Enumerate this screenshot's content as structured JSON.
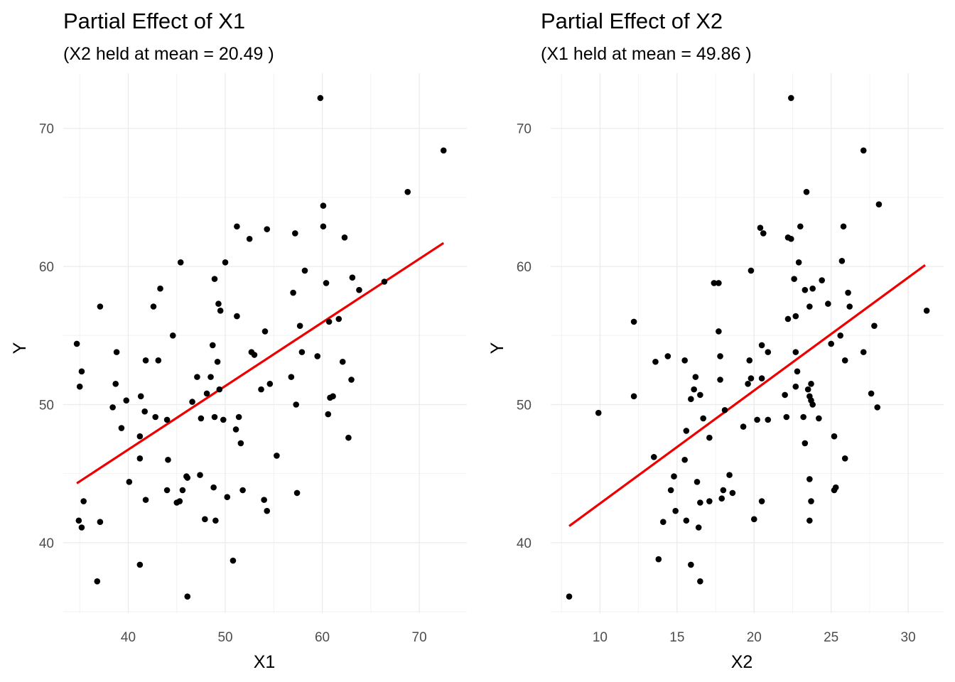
{
  "chart_data": [
    {
      "type": "scatter",
      "title": "Partial Effect of X1",
      "subtitle": "(X2 held at mean = 20.49 )",
      "xlabel": "X1",
      "ylabel": "Y",
      "xlim": [
        33.3,
        74.9
      ],
      "ylim": [
        34.9,
        74.0
      ],
      "x_ticks": [
        "40",
        "50",
        "60",
        "70"
      ],
      "y_ticks": [
        "40",
        "50",
        "60",
        "70"
      ],
      "grid": true,
      "point_color": "#000000",
      "fit_color": "#ee0000",
      "fit_line": {
        "x": [
          34.7,
          72.5
        ],
        "y": [
          44.3,
          61.7
        ]
      },
      "points": [
        {
          "x": 34.7,
          "y": 54.4
        },
        {
          "x": 34.9,
          "y": 41.6
        },
        {
          "x": 35.0,
          "y": 51.3
        },
        {
          "x": 35.2,
          "y": 52.4
        },
        {
          "x": 35.2,
          "y": 41.1
        },
        {
          "x": 35.4,
          "y": 43.0
        },
        {
          "x": 36.8,
          "y": 37.2
        },
        {
          "x": 37.1,
          "y": 57.1
        },
        {
          "x": 37.1,
          "y": 41.5
        },
        {
          "x": 38.4,
          "y": 49.8
        },
        {
          "x": 38.7,
          "y": 51.5
        },
        {
          "x": 38.8,
          "y": 53.8
        },
        {
          "x": 39.3,
          "y": 48.3
        },
        {
          "x": 39.8,
          "y": 50.3
        },
        {
          "x": 40.1,
          "y": 44.4
        },
        {
          "x": 41.2,
          "y": 47.7
        },
        {
          "x": 41.2,
          "y": 46.1
        },
        {
          "x": 41.2,
          "y": 38.4
        },
        {
          "x": 41.3,
          "y": 50.6
        },
        {
          "x": 41.7,
          "y": 49.5
        },
        {
          "x": 41.8,
          "y": 53.2
        },
        {
          "x": 41.8,
          "y": 43.1
        },
        {
          "x": 42.6,
          "y": 57.1
        },
        {
          "x": 42.8,
          "y": 49.1
        },
        {
          "x": 43.1,
          "y": 53.2
        },
        {
          "x": 43.3,
          "y": 58.4
        },
        {
          "x": 44.0,
          "y": 48.9
        },
        {
          "x": 44.0,
          "y": 43.8
        },
        {
          "x": 44.1,
          "y": 46.0
        },
        {
          "x": 44.6,
          "y": 55.0
        },
        {
          "x": 45.0,
          "y": 42.9
        },
        {
          "x": 45.3,
          "y": 43.0
        },
        {
          "x": 45.4,
          "y": 60.3
        },
        {
          "x": 45.6,
          "y": 43.8
        },
        {
          "x": 46.0,
          "y": 44.8
        },
        {
          "x": 46.1,
          "y": 44.7
        },
        {
          "x": 46.1,
          "y": 36.1
        },
        {
          "x": 46.6,
          "y": 50.2
        },
        {
          "x": 47.1,
          "y": 52.0
        },
        {
          "x": 47.4,
          "y": 44.9
        },
        {
          "x": 47.5,
          "y": 49.0
        },
        {
          "x": 47.9,
          "y": 41.7
        },
        {
          "x": 48.1,
          "y": 50.8
        },
        {
          "x": 48.5,
          "y": 52.0
        },
        {
          "x": 48.7,
          "y": 54.3
        },
        {
          "x": 48.8,
          "y": 44.0
        },
        {
          "x": 48.9,
          "y": 49.1
        },
        {
          "x": 48.9,
          "y": 59.1
        },
        {
          "x": 49.0,
          "y": 41.6
        },
        {
          "x": 49.2,
          "y": 53.1
        },
        {
          "x": 49.3,
          "y": 57.3
        },
        {
          "x": 49.4,
          "y": 51.1
        },
        {
          "x": 49.5,
          "y": 56.8
        },
        {
          "x": 49.8,
          "y": 48.9
        },
        {
          "x": 50.0,
          "y": 60.3
        },
        {
          "x": 50.2,
          "y": 43.3
        },
        {
          "x": 50.8,
          "y": 38.7
        },
        {
          "x": 51.1,
          "y": 48.2
        },
        {
          "x": 51.2,
          "y": 56.4
        },
        {
          "x": 51.2,
          "y": 62.9
        },
        {
          "x": 51.4,
          "y": 49.1
        },
        {
          "x": 51.6,
          "y": 47.2
        },
        {
          "x": 51.8,
          "y": 43.8
        },
        {
          "x": 52.5,
          "y": 62.0
        },
        {
          "x": 52.7,
          "y": 53.8
        },
        {
          "x": 53.0,
          "y": 53.6
        },
        {
          "x": 53.7,
          "y": 51.1
        },
        {
          "x": 54.0,
          "y": 43.1
        },
        {
          "x": 54.1,
          "y": 55.3
        },
        {
          "x": 54.3,
          "y": 62.7
        },
        {
          "x": 54.3,
          "y": 42.3
        },
        {
          "x": 54.6,
          "y": 51.5
        },
        {
          "x": 55.3,
          "y": 46.3
        },
        {
          "x": 56.8,
          "y": 52.0
        },
        {
          "x": 57.0,
          "y": 58.1
        },
        {
          "x": 57.2,
          "y": 62.4
        },
        {
          "x": 57.3,
          "y": 50.0
        },
        {
          "x": 57.4,
          "y": 43.6
        },
        {
          "x": 57.7,
          "y": 55.7
        },
        {
          "x": 57.9,
          "y": 53.8
        },
        {
          "x": 58.2,
          "y": 59.7
        },
        {
          "x": 59.5,
          "y": 53.5
        },
        {
          "x": 59.8,
          "y": 72.2
        },
        {
          "x": 60.1,
          "y": 62.9
        },
        {
          "x": 60.1,
          "y": 64.4
        },
        {
          "x": 60.4,
          "y": 58.8
        },
        {
          "x": 60.6,
          "y": 49.3
        },
        {
          "x": 60.7,
          "y": 56.0
        },
        {
          "x": 60.8,
          "y": 50.5
        },
        {
          "x": 61.1,
          "y": 50.6
        },
        {
          "x": 61.7,
          "y": 56.2
        },
        {
          "x": 62.1,
          "y": 53.1
        },
        {
          "x": 62.3,
          "y": 62.1
        },
        {
          "x": 62.7,
          "y": 47.6
        },
        {
          "x": 63.0,
          "y": 51.8
        },
        {
          "x": 63.1,
          "y": 59.2
        },
        {
          "x": 63.8,
          "y": 58.3
        },
        {
          "x": 66.4,
          "y": 58.9
        },
        {
          "x": 68.8,
          "y": 65.4
        },
        {
          "x": 72.5,
          "y": 68.4
        }
      ]
    },
    {
      "type": "scatter",
      "title": "Partial Effect of X2",
      "subtitle": "(X1 held at mean = 49.86 )",
      "xlabel": "X2",
      "ylabel": "Y",
      "xlim": [
        6.8,
        32.3
      ],
      "ylim": [
        34.9,
        74.0
      ],
      "x_ticks": [
        "10",
        "15",
        "20",
        "25",
        "30"
      ],
      "y_ticks": [
        "40",
        "50",
        "60",
        "70"
      ],
      "grid": true,
      "point_color": "#000000",
      "fit_color": "#ee0000",
      "fit_line": {
        "x": [
          8.0,
          31.1
        ],
        "y": [
          41.2,
          60.1
        ]
      },
      "points": [
        {
          "x": 8.0,
          "y": 36.1
        },
        {
          "x": 9.9,
          "y": 49.4
        },
        {
          "x": 12.2,
          "y": 56.0
        },
        {
          "x": 12.2,
          "y": 50.6
        },
        {
          "x": 13.5,
          "y": 46.2
        },
        {
          "x": 13.6,
          "y": 53.1
        },
        {
          "x": 13.8,
          "y": 38.8
        },
        {
          "x": 14.1,
          "y": 41.5
        },
        {
          "x": 14.4,
          "y": 53.5
        },
        {
          "x": 14.6,
          "y": 43.8
        },
        {
          "x": 14.8,
          "y": 44.8
        },
        {
          "x": 14.9,
          "y": 42.3
        },
        {
          "x": 15.5,
          "y": 53.2
        },
        {
          "x": 15.5,
          "y": 46.0
        },
        {
          "x": 15.6,
          "y": 48.1
        },
        {
          "x": 15.6,
          "y": 41.6
        },
        {
          "x": 15.9,
          "y": 50.4
        },
        {
          "x": 15.9,
          "y": 38.4
        },
        {
          "x": 16.1,
          "y": 51.1
        },
        {
          "x": 16.2,
          "y": 52.0
        },
        {
          "x": 16.3,
          "y": 44.4
        },
        {
          "x": 16.4,
          "y": 41.1
        },
        {
          "x": 16.5,
          "y": 50.7
        },
        {
          "x": 16.5,
          "y": 37.2
        },
        {
          "x": 16.5,
          "y": 42.9
        },
        {
          "x": 16.7,
          "y": 49.0
        },
        {
          "x": 17.1,
          "y": 47.6
        },
        {
          "x": 17.1,
          "y": 43.0
        },
        {
          "x": 17.4,
          "y": 58.8
        },
        {
          "x": 17.7,
          "y": 58.8
        },
        {
          "x": 17.7,
          "y": 55.3
        },
        {
          "x": 17.8,
          "y": 53.5
        },
        {
          "x": 17.8,
          "y": 51.8
        },
        {
          "x": 17.9,
          "y": 43.2
        },
        {
          "x": 18.0,
          "y": 43.8
        },
        {
          "x": 18.1,
          "y": 49.6
        },
        {
          "x": 18.4,
          "y": 44.9
        },
        {
          "x": 18.6,
          "y": 43.6
        },
        {
          "x": 19.3,
          "y": 48.4
        },
        {
          "x": 19.6,
          "y": 51.5
        },
        {
          "x": 19.7,
          "y": 53.2
        },
        {
          "x": 19.8,
          "y": 59.7
        },
        {
          "x": 19.8,
          "y": 51.9
        },
        {
          "x": 20.0,
          "y": 41.7
        },
        {
          "x": 20.2,
          "y": 48.9
        },
        {
          "x": 20.4,
          "y": 62.8
        },
        {
          "x": 20.5,
          "y": 54.3
        },
        {
          "x": 20.5,
          "y": 51.9
        },
        {
          "x": 20.5,
          "y": 43.0
        },
        {
          "x": 20.6,
          "y": 62.4
        },
        {
          "x": 20.9,
          "y": 53.8
        },
        {
          "x": 20.9,
          "y": 48.9
        },
        {
          "x": 22.0,
          "y": 50.7
        },
        {
          "x": 22.1,
          "y": 49.1
        },
        {
          "x": 22.2,
          "y": 62.1
        },
        {
          "x": 22.2,
          "y": 56.2
        },
        {
          "x": 22.4,
          "y": 62.0
        },
        {
          "x": 22.4,
          "y": 72.2
        },
        {
          "x": 22.6,
          "y": 59.1
        },
        {
          "x": 22.7,
          "y": 53.8
        },
        {
          "x": 22.7,
          "y": 51.3
        },
        {
          "x": 22.7,
          "y": 56.4
        },
        {
          "x": 22.8,
          "y": 52.4
        },
        {
          "x": 22.9,
          "y": 60.3
        },
        {
          "x": 23.0,
          "y": 62.9
        },
        {
          "x": 23.2,
          "y": 49.1
        },
        {
          "x": 23.3,
          "y": 47.2
        },
        {
          "x": 23.3,
          "y": 58.3
        },
        {
          "x": 23.4,
          "y": 65.4
        },
        {
          "x": 23.5,
          "y": 51.1
        },
        {
          "x": 23.6,
          "y": 57.1
        },
        {
          "x": 23.6,
          "y": 50.6
        },
        {
          "x": 23.6,
          "y": 44.6
        },
        {
          "x": 23.6,
          "y": 41.6
        },
        {
          "x": 23.7,
          "y": 50.3
        },
        {
          "x": 23.7,
          "y": 43.0
        },
        {
          "x": 23.7,
          "y": 51.5
        },
        {
          "x": 23.8,
          "y": 58.4
        },
        {
          "x": 23.8,
          "y": 50.0
        },
        {
          "x": 24.2,
          "y": 49.0
        },
        {
          "x": 24.4,
          "y": 59.0
        },
        {
          "x": 24.8,
          "y": 57.3
        },
        {
          "x": 25.0,
          "y": 54.4
        },
        {
          "x": 25.2,
          "y": 47.7
        },
        {
          "x": 25.2,
          "y": 43.8
        },
        {
          "x": 25.3,
          "y": 44.0
        },
        {
          "x": 25.6,
          "y": 55.0
        },
        {
          "x": 25.7,
          "y": 60.4
        },
        {
          "x": 25.8,
          "y": 62.9
        },
        {
          "x": 25.9,
          "y": 53.2
        },
        {
          "x": 25.9,
          "y": 46.1
        },
        {
          "x": 26.1,
          "y": 58.1
        },
        {
          "x": 26.2,
          "y": 57.1
        },
        {
          "x": 27.1,
          "y": 68.4
        },
        {
          "x": 27.1,
          "y": 53.8
        },
        {
          "x": 27.6,
          "y": 50.8
        },
        {
          "x": 27.8,
          "y": 55.7
        },
        {
          "x": 28.0,
          "y": 49.8
        },
        {
          "x": 28.1,
          "y": 64.5
        },
        {
          "x": 31.2,
          "y": 56.8
        }
      ]
    }
  ]
}
